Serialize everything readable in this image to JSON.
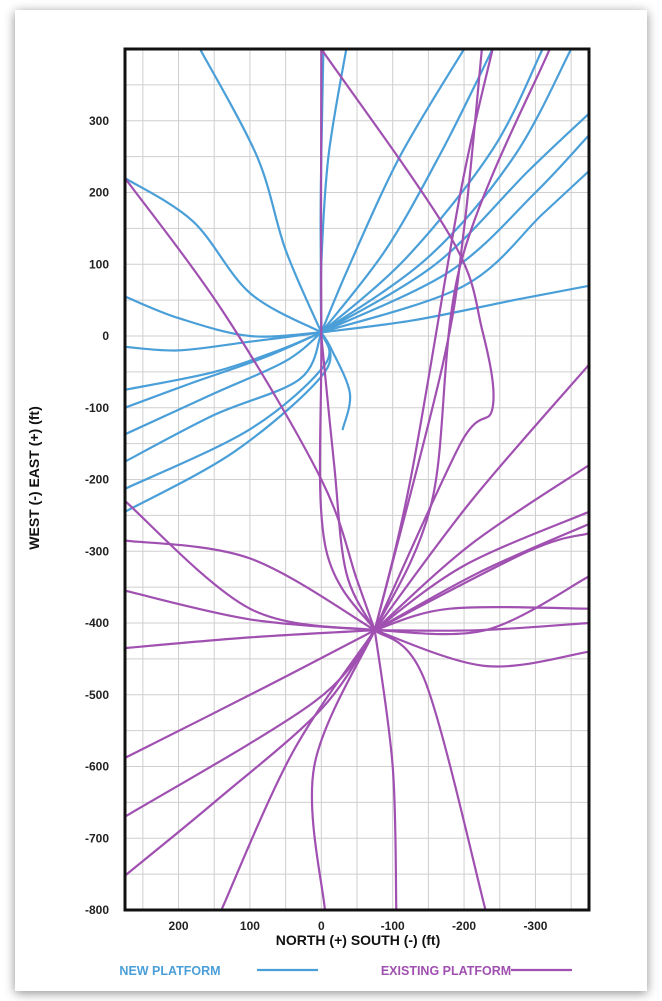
{
  "chart_data": {
    "type": "line",
    "xlabel": "NORTH (+) SOUTH (-)  (ft)",
    "ylabel": "WEST (-) EAST (+)  (ft)",
    "xlim": [
      275,
      -375
    ],
    "ylim": [
      -800,
      400
    ],
    "x_ticks": [
      200,
      100,
      0,
      -100,
      -200,
      -300
    ],
    "x_tick_labels": [
      "200",
      "100",
      "0",
      "-100",
      "-200",
      "-300"
    ],
    "y_ticks": [
      300,
      200,
      100,
      0,
      -100,
      -200,
      -300,
      -400,
      -500,
      -600,
      -700,
      -800
    ],
    "y_tick_labels": [
      "300",
      "200",
      "100",
      "0",
      "-100",
      "-200",
      "-300",
      "-400",
      "-500",
      "-600",
      "-700",
      "-800"
    ],
    "grid": true,
    "legend_position": "bottom",
    "colors": {
      "new": "#4a9fd8",
      "existing": "#a050b0"
    },
    "series": [
      {
        "name": "NEW PLATFORM",
        "color": "#4a9fd8",
        "lines": [
          [
            [
              0,
              5
            ],
            [
              0,
              100
            ],
            [
              -10,
              250
            ],
            [
              -35,
              400
            ]
          ],
          [
            [
              0,
              5
            ],
            [
              1,
              150
            ],
            [
              0,
              250
            ],
            [
              -3,
              400
            ]
          ],
          [
            [
              0,
              5
            ],
            [
              50,
              120
            ],
            [
              90,
              250
            ],
            [
              170,
              400
            ]
          ],
          [
            [
              0,
              5
            ],
            [
              100,
              60
            ],
            [
              180,
              160
            ],
            [
              275,
              220
            ]
          ],
          [
            [
              0,
              5
            ],
            [
              -40,
              100
            ],
            [
              -110,
              250
            ],
            [
              -200,
              400
            ]
          ],
          [
            [
              0,
              5
            ],
            [
              -90,
              120
            ],
            [
              -170,
              260
            ],
            [
              -240,
              400
            ]
          ],
          [
            [
              0,
              5
            ],
            [
              -120,
              110
            ],
            [
              -240,
              260
            ],
            [
              -310,
              400
            ]
          ],
          [
            [
              0,
              5
            ],
            [
              -150,
              110
            ],
            [
              -270,
              250
            ],
            [
              -350,
              400
            ]
          ],
          [
            [
              0,
              5
            ],
            [
              -160,
              100
            ],
            [
              -290,
              230
            ],
            [
              -375,
              310
            ]
          ],
          [
            [
              0,
              5
            ],
            [
              -180,
              90
            ],
            [
              -300,
              200
            ],
            [
              -375,
              280
            ]
          ],
          [
            [
              0,
              5
            ],
            [
              -200,
              70
            ],
            [
              -310,
              170
            ],
            [
              -375,
              230
            ]
          ],
          [
            [
              0,
              5
            ],
            [
              -130,
              22
            ],
            [
              -270,
              50
            ],
            [
              -375,
              70
            ]
          ],
          [
            [
              0,
              5
            ],
            [
              -15,
              -20
            ],
            [
              -40,
              -80
            ],
            [
              -30,
              -130
            ]
          ],
          [
            [
              0,
              5
            ],
            [
              100,
              -8
            ],
            [
              200,
              -20
            ],
            [
              275,
              -15
            ]
          ],
          [
            [
              0,
              5
            ],
            [
              100,
              0
            ],
            [
              200,
              25
            ],
            [
              275,
              55
            ]
          ],
          [
            [
              0,
              5
            ],
            [
              60,
              -20
            ],
            [
              150,
              -50
            ],
            [
              275,
              -75
            ]
          ],
          [
            [
              0,
              5
            ],
            [
              80,
              -30
            ],
            [
              180,
              -65
            ],
            [
              275,
              -100
            ]
          ],
          [
            [
              0,
              5
            ],
            [
              50,
              -35
            ],
            [
              150,
              -80
            ],
            [
              275,
              -137
            ]
          ],
          [
            [
              0,
              5
            ],
            [
              30,
              -60
            ],
            [
              150,
              -110
            ],
            [
              275,
              -175
            ]
          ],
          [
            [
              0,
              5
            ],
            [
              -5,
              -40
            ],
            [
              100,
              -130
            ],
            [
              275,
              -213
            ]
          ],
          [
            [
              0,
              5
            ],
            [
              -5,
              -50
            ],
            [
              120,
              -160
            ],
            [
              275,
              -245
            ]
          ]
        ]
      },
      {
        "name": "EXISTING PLATFORM",
        "color": "#a050b0",
        "lines": [
          [
            [
              -75,
              -410
            ],
            [
              -5,
              -290
            ],
            [
              0,
              0
            ],
            [
              0,
              400
            ]
          ],
          [
            [
              -75,
              -410
            ],
            [
              -35,
              -330
            ],
            [
              -18,
              -180
            ],
            [
              0,
              0
            ]
          ],
          [
            [
              -75,
              -410
            ],
            [
              -50,
              -340
            ],
            [
              0,
              -200
            ],
            [
              135,
              30
            ],
            [
              275,
              220
            ]
          ],
          [
            [
              -75,
              -410
            ],
            [
              -170,
              -40
            ],
            [
              -200,
              150
            ],
            [
              -225,
              400
            ]
          ],
          [
            [
              -75,
              -410
            ],
            [
              -125,
              -200
            ],
            [
              -195,
              200
            ],
            [
              -240,
              400
            ]
          ],
          [
            [
              -75,
              -410
            ],
            [
              -155,
              -230
            ],
            [
              -195,
              100
            ],
            [
              -320,
              400
            ]
          ],
          [
            [
              -75,
              -410
            ],
            [
              -195,
              -150
            ],
            [
              -240,
              -100
            ],
            [
              -225,
              10
            ],
            [
              -180,
              140
            ],
            [
              0,
              400
            ]
          ],
          [
            [
              -75,
              -410
            ],
            [
              -210,
              -230
            ],
            [
              -375,
              -40
            ]
          ],
          [
            [
              -75,
              -410
            ],
            [
              -210,
              -290
            ],
            [
              -375,
              -180
            ]
          ],
          [
            [
              -75,
              -410
            ],
            [
              -200,
              -320
            ],
            [
              -375,
              -245
            ]
          ],
          [
            [
              -75,
              -410
            ],
            [
              -220,
              -330
            ],
            [
              -375,
              -262
            ]
          ],
          [
            [
              -75,
              -410
            ],
            [
              -290,
              -300
            ],
            [
              -375,
              -275
            ]
          ],
          [
            [
              -75,
              -410
            ],
            [
              -180,
              -380
            ],
            [
              -375,
              -380
            ]
          ],
          [
            [
              -75,
              -410
            ],
            [
              -220,
              -410
            ],
            [
              -375,
              -400
            ]
          ],
          [
            [
              -75,
              -410
            ],
            [
              -230,
              -460
            ],
            [
              -375,
              -440
            ]
          ],
          [
            [
              -75,
              -410
            ],
            [
              -230,
              -410
            ],
            [
              -375,
              -335
            ]
          ],
          [
            [
              -75,
              -410
            ],
            [
              100,
              -380
            ],
            [
              275,
              -230
            ]
          ],
          [
            [
              -75,
              -410
            ],
            [
              100,
              -310
            ],
            [
              275,
              -285
            ]
          ],
          [
            [
              -75,
              -410
            ],
            [
              100,
              -395
            ],
            [
              275,
              -355
            ]
          ],
          [
            [
              -75,
              -410
            ],
            [
              100,
              -420
            ],
            [
              275,
              -435
            ]
          ],
          [
            [
              -75,
              -410
            ],
            [
              80,
              -490
            ],
            [
              275,
              -588
            ]
          ],
          [
            [
              -75,
              -410
            ],
            [
              10,
              -510
            ],
            [
              275,
              -670
            ]
          ],
          [
            [
              -75,
              -410
            ],
            [
              0,
              -520
            ],
            [
              150,
              -650
            ],
            [
              275,
              -752
            ]
          ],
          [
            [
              -75,
              -410
            ],
            [
              40,
              -580
            ],
            [
              140,
              -800
            ]
          ],
          [
            [
              -75,
              -410
            ],
            [
              10,
              -600
            ],
            [
              -5,
              -800
            ]
          ],
          [
            [
              -75,
              -410
            ],
            [
              -100,
              -600
            ],
            [
              -105,
              -800
            ]
          ],
          [
            [
              -75,
              -410
            ],
            [
              -145,
              -480
            ],
            [
              -230,
              -800
            ]
          ]
        ]
      }
    ]
  },
  "legend": [
    {
      "label": "NEW PLATFORM",
      "color": "#4a9fd8"
    },
    {
      "label": "EXISTING PLATFORM",
      "color": "#a050b0"
    }
  ]
}
